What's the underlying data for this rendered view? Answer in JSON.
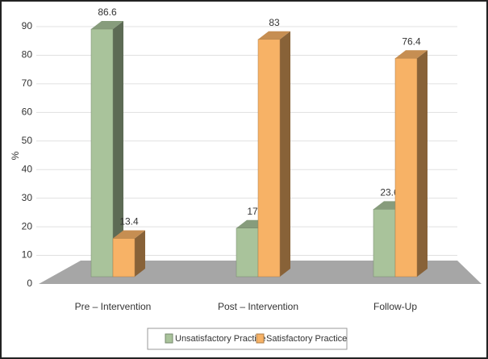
{
  "chart_data": {
    "type": "bar3d",
    "ylabel": "%",
    "categories": [
      "Pre – Intervention",
      "Post – Intervention",
      "Follow-Up"
    ],
    "series": [
      {
        "name": "Unsatisfactory Practice",
        "color": "#a9c39b",
        "values": [
          86.6,
          17,
          23.6
        ]
      },
      {
        "name": "Satisfactory Practice",
        "color": "#f7b266",
        "values": [
          13.4,
          83,
          76.4
        ]
      }
    ],
    "ylim": [
      0,
      90
    ],
    "yticks": [
      0,
      10,
      20,
      30,
      40,
      50,
      60,
      70,
      80,
      90
    ],
    "grid": true,
    "legend": "bottom"
  }
}
